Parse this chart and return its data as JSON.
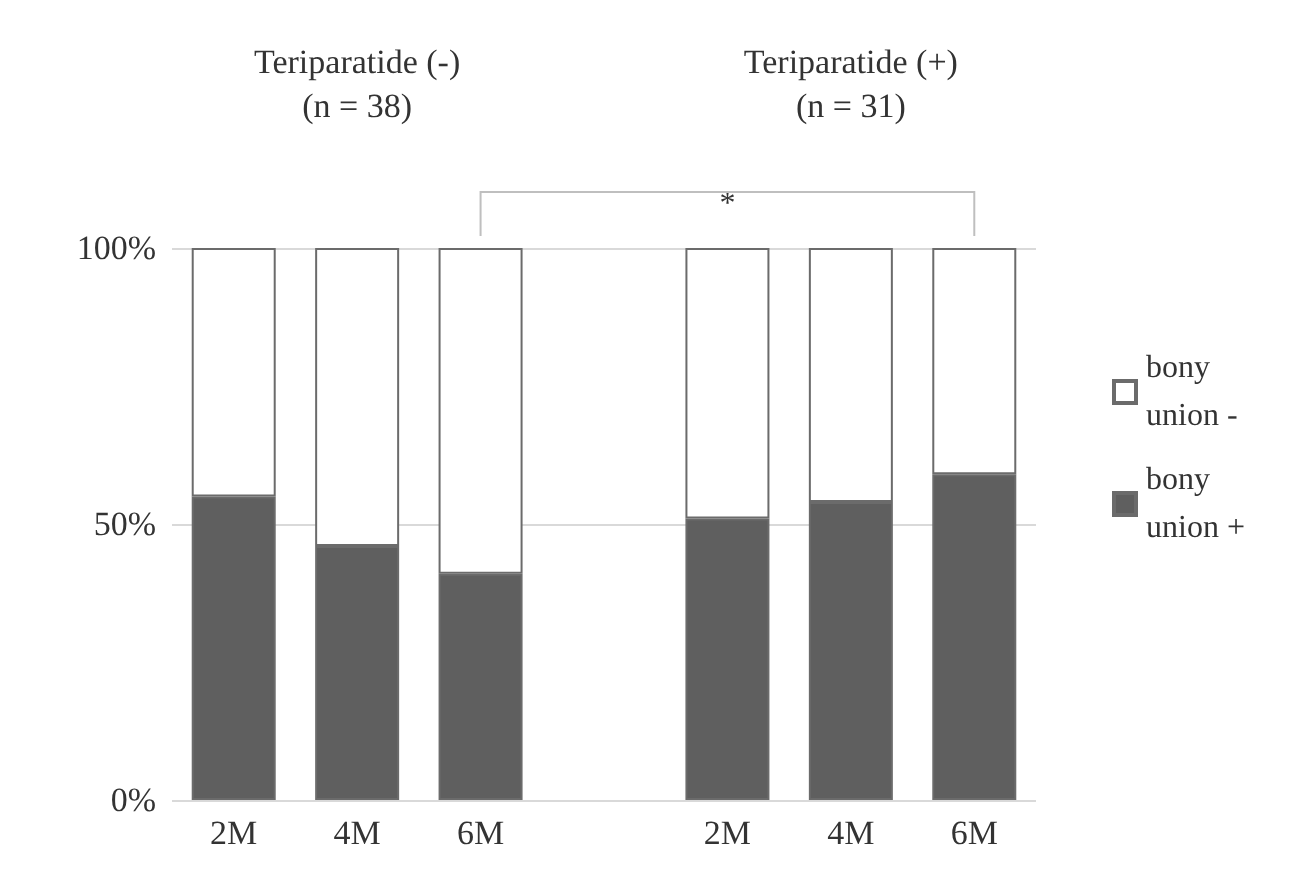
{
  "chart_data": {
    "type": "bar",
    "stacked": true,
    "categories": [
      "2M",
      "4M",
      "6M",
      null,
      "2M",
      "4M",
      "6M"
    ],
    "series": [
      {
        "name": "bony union +",
        "color": "#5f5f5f",
        "values": [
          55,
          46,
          41,
          null,
          51,
          54,
          59
        ]
      },
      {
        "name": "bony union -",
        "color": "#ffffff",
        "values": [
          45,
          54,
          59,
          null,
          49,
          46,
          41
        ]
      }
    ],
    "ylim": [
      0,
      100
    ],
    "yticks": [
      {
        "value": 0,
        "label": "0%"
      },
      {
        "value": 50,
        "label": "50%"
      },
      {
        "value": 100,
        "label": "100%"
      }
    ],
    "grid": "y",
    "legend": "right",
    "annotations": [
      "Teriparatide (-)\n(n = 38)",
      "Teriparatide (+)\n(n = 31)",
      "*"
    ]
  }
}
